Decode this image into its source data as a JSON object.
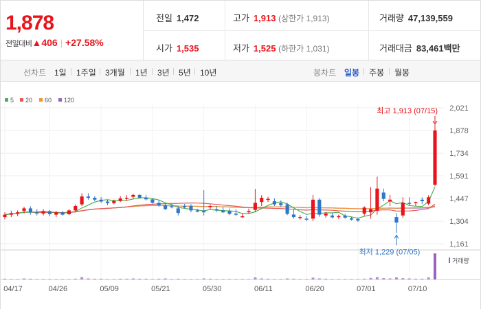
{
  "price": {
    "current": "1,878",
    "change_label": "전일대비",
    "change_arrow": "▲",
    "change_value": "406",
    "change_pct": "+27.58%",
    "up_color": "#e7141c"
  },
  "stats": {
    "prev_close_label": "전일",
    "prev_close": "1,472",
    "high_label": "고가",
    "high": "1,913",
    "high_note": "(상한가 1,913)",
    "volume_label": "거래량",
    "volume": "47,139,559",
    "open_label": "시가",
    "open": "1,535",
    "low_label": "저가",
    "low": "1,525",
    "low_note": "(하한가 1,031)",
    "amount_label": "거래대금",
    "amount": "83,461",
    "amount_unit": "백만"
  },
  "toolbar": {
    "line_chart_label": "선차트",
    "ranges": [
      "1일",
      "1주일",
      "3개월",
      "1년",
      "3년",
      "5년",
      "10년"
    ],
    "candle_label": "봉차트",
    "periods": [
      "일봉",
      "주봉",
      "월봉"
    ],
    "active_period": "일봉"
  },
  "chart_data": {
    "type": "candlestick",
    "legend": [
      {
        "name": "5",
        "color": "#4caf50"
      },
      {
        "name": "20",
        "color": "#e45757"
      },
      {
        "name": "60",
        "color": "#f0962e"
      },
      {
        "name": "120",
        "color": "#9a62c4"
      }
    ],
    "y_ticks": [
      "2,021",
      "1,878",
      "1,734",
      "1,591",
      "1,447",
      "1,304",
      "1,161"
    ],
    "y_tick_values": [
      2021,
      1878,
      1734,
      1591,
      1447,
      1304,
      1161
    ],
    "ylim": [
      1161,
      2021
    ],
    "x_ticks": [
      "04/17",
      "04/26",
      "05/09",
      "05/21",
      "05/30",
      "06/11",
      "06/20",
      "07/01",
      "07/10"
    ],
    "x_tick_index": [
      0,
      7,
      15,
      23,
      31,
      39,
      47,
      55,
      63
    ],
    "annotations": {
      "high": "최고 1,913 (07/15)",
      "low": "최저 1,229 (07/05)",
      "high_color": "#e7141c",
      "low_color": "#2e76c8"
    },
    "volume_label": "거래량",
    "up_color": "#e7141c",
    "down_color": "#2e76c8",
    "candles": [
      [
        1330,
        1360,
        1315,
        1345
      ],
      [
        1345,
        1370,
        1330,
        1355
      ],
      [
        1350,
        1372,
        1335,
        1360
      ],
      [
        1370,
        1395,
        1352,
        1385
      ],
      [
        1385,
        1398,
        1345,
        1360
      ],
      [
        1360,
        1380,
        1340,
        1352
      ],
      [
        1352,
        1380,
        1340,
        1368
      ],
      [
        1368,
        1375,
        1335,
        1348
      ],
      [
        1345,
        1368,
        1330,
        1360
      ],
      [
        1360,
        1370,
        1338,
        1345
      ],
      [
        1348,
        1380,
        1342,
        1372
      ],
      [
        1372,
        1410,
        1365,
        1400
      ],
      [
        1410,
        1480,
        1400,
        1460
      ],
      [
        1460,
        1480,
        1440,
        1452
      ],
      [
        1452,
        1462,
        1430,
        1440
      ],
      [
        1440,
        1456,
        1420,
        1428
      ],
      [
        1428,
        1440,
        1405,
        1418
      ],
      [
        1418,
        1440,
        1410,
        1432
      ],
      [
        1432,
        1462,
        1425,
        1448
      ],
      [
        1448,
        1468,
        1432,
        1452
      ],
      [
        1458,
        1478,
        1445,
        1470
      ],
      [
        1470,
        1475,
        1448,
        1452
      ],
      [
        1452,
        1470,
        1435,
        1442
      ],
      [
        1442,
        1450,
        1415,
        1420
      ],
      [
        1420,
        1440,
        1395,
        1405
      ],
      [
        1405,
        1418,
        1375,
        1380
      ],
      [
        1398,
        1412,
        1385,
        1392
      ],
      [
        1385,
        1400,
        1340,
        1356
      ],
      [
        1400,
        1412,
        1385,
        1392
      ],
      [
        1400,
        1412,
        1360,
        1372
      ],
      [
        1372,
        1382,
        1360,
        1364
      ],
      [
        1372,
        1500,
        1340,
        1360
      ],
      [
        1392,
        1410,
        1380,
        1400
      ],
      [
        1380,
        1400,
        1362,
        1372
      ],
      [
        1372,
        1392,
        1355,
        1360
      ],
      [
        1370,
        1385,
        1342,
        1350
      ],
      [
        1352,
        1378,
        1335,
        1345
      ],
      [
        1330,
        1350,
        1325,
        1335
      ],
      [
        1360,
        1384,
        1352,
        1368
      ],
      [
        1375,
        1508,
        1360,
        1420
      ],
      [
        1425,
        1468,
        1400,
        1452
      ],
      [
        1440,
        1458,
        1425,
        1445
      ],
      [
        1430,
        1448,
        1400,
        1410
      ],
      [
        1418,
        1435,
        1395,
        1405
      ],
      [
        1410,
        1420,
        1342,
        1350
      ],
      [
        1346,
        1378,
        1320,
        1330
      ],
      [
        1326,
        1342,
        1314,
        1330
      ],
      [
        1320,
        1336,
        1305,
        1318
      ],
      [
        1320,
        1470,
        1305,
        1440
      ],
      [
        1440,
        1450,
        1332,
        1345
      ],
      [
        1340,
        1362,
        1326,
        1352
      ],
      [
        1340,
        1357,
        1322,
        1328
      ],
      [
        1332,
        1345,
        1318,
        1336
      ],
      [
        1338,
        1350,
        1320,
        1326
      ],
      [
        1322,
        1330,
        1308,
        1314
      ],
      [
        1318,
        1327,
        1300,
        1308
      ],
      [
        1352,
        1398,
        1340,
        1390
      ],
      [
        1360,
        1520,
        1320,
        1380
      ],
      [
        1370,
        1585,
        1345,
        1510
      ],
      [
        1485,
        1510,
        1430,
        1445
      ],
      [
        1430,
        1470,
        1400,
        1440
      ],
      [
        1330,
        1355,
        1229,
        1295
      ],
      [
        1340,
        1455,
        1325,
        1420
      ],
      [
        1420,
        1455,
        1400,
        1415
      ],
      [
        1420,
        1428,
        1400,
        1424
      ],
      [
        1440,
        1455,
        1412,
        1430
      ],
      [
        1415,
        1468,
        1405,
        1455
      ],
      [
        1535,
        1913,
        1525,
        1878
      ]
    ],
    "volume": [
      3,
      2,
      2,
      4,
      3,
      2,
      2,
      2,
      2,
      2,
      2,
      3,
      9,
      4,
      3,
      3,
      2,
      2,
      3,
      3,
      4,
      3,
      3,
      2,
      3,
      4,
      2,
      3,
      2,
      2,
      2,
      4,
      3,
      2,
      2,
      2,
      2,
      2,
      2,
      8,
      4,
      3,
      2,
      2,
      4,
      3,
      2,
      2,
      7,
      4,
      3,
      2,
      2,
      2,
      2,
      2,
      3,
      6,
      9,
      5,
      4,
      8,
      5,
      4,
      3,
      3,
      8,
      100
    ]
  }
}
